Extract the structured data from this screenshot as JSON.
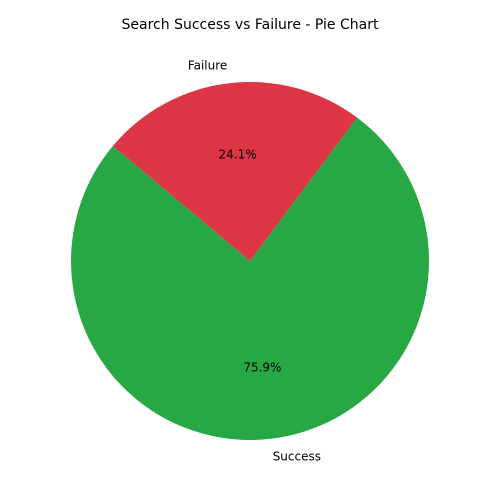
{
  "chart_data": {
    "type": "pie",
    "title": "Search Success vs Failure - Pie Chart",
    "categories": [
      "Success",
      "Failure"
    ],
    "values": [
      75.9,
      24.1
    ],
    "percent_labels": [
      "75.9%",
      "24.1%"
    ],
    "colors": [
      "#28a745",
      "#dc3545"
    ],
    "start_angle_deg": 140,
    "direction": "counterclockwise",
    "legend": "none"
  }
}
